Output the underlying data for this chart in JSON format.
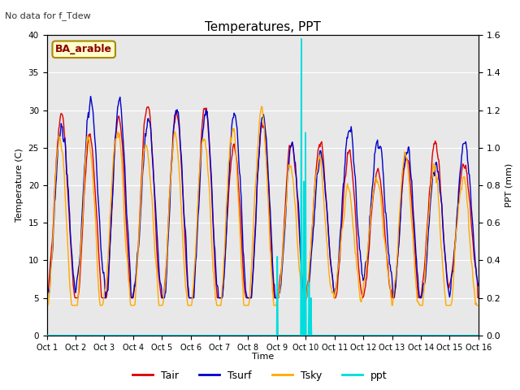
{
  "title": "Temperatures, PPT",
  "subtitle": "No data for f_Tdew",
  "site_label": "BA_arable",
  "xlabel": "Time",
  "ylabel_left": "Temperature (C)",
  "ylabel_right": "PPT (mm)",
  "xlim": [
    0,
    15
  ],
  "ylim_left": [
    0,
    40
  ],
  "ylim_right": [
    0,
    1.6
  ],
  "yticks_left": [
    0,
    5,
    10,
    15,
    20,
    25,
    30,
    35,
    40
  ],
  "yticks_right": [
    0.0,
    0.2,
    0.4,
    0.6,
    0.8,
    1.0,
    1.2,
    1.4,
    1.6
  ],
  "xtick_labels": [
    "Oct 1",
    "Oct 2",
    "Oct 3",
    "Oct 4",
    "Oct 5",
    "Oct 6",
    "Oct 7",
    "Oct 8",
    "Oct 9",
    "Oct 10",
    "Oct 11",
    "Oct 12",
    "Oct 13",
    "Oct 14",
    "Oct 15",
    "Oct 16"
  ],
  "bg_color": "#e8e8e8",
  "plot_bg_color": "#f0f0f0",
  "grid_color": "#ffffff",
  "colors": {
    "Tair": "#dd0000",
    "Tsurf": "#0000cc",
    "Tsky": "#ffaa00",
    "ppt": "#00dddd"
  },
  "legend_labels": [
    "Tair",
    "Tsurf",
    "Tsky",
    "ppt"
  ],
  "n_days": 15,
  "pts_per_day": 48
}
